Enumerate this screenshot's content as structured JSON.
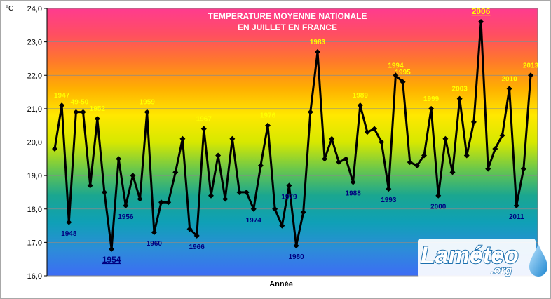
{
  "chart_data": {
    "type": "line",
    "title_lines": [
      "TEMPERATURE MOYENNE NATIONALE",
      "EN JUILLET EN FRANCE"
    ],
    "xlabel": "Année",
    "ylabel": "°C",
    "ylim": [
      16,
      24
    ],
    "yticks": [
      "16,0",
      "17,0",
      "18,0",
      "19,0",
      "20,0",
      "21,0",
      "22,0",
      "23,0",
      "24,0"
    ],
    "grid": "horizontal",
    "background_gradient": [
      "#ff3b8f",
      "#ff4f60",
      "#ff7a2a",
      "#ffb000",
      "#ffe800",
      "#d7e800",
      "#6cc84a",
      "#1aa690",
      "#0fa0b6",
      "#2c8dd8",
      "#3d6cf5"
    ],
    "x": [
      1946,
      1947,
      1948,
      1949,
      1950,
      1951,
      1952,
      1953,
      1954,
      1955,
      1956,
      1957,
      1958,
      1959,
      1960,
      1961,
      1962,
      1963,
      1964,
      1965,
      1966,
      1967,
      1968,
      1969,
      1970,
      1971,
      1972,
      1973,
      1974,
      1975,
      1976,
      1977,
      1978,
      1979,
      1980,
      1981,
      1982,
      1983,
      1984,
      1985,
      1986,
      1987,
      1988,
      1989,
      1990,
      1991,
      1992,
      1993,
      1994,
      1995,
      1996,
      1997,
      1998,
      1999,
      2000,
      2001,
      2002,
      2003,
      2004,
      2005,
      2006,
      2007,
      2008,
      2009,
      2010,
      2011,
      2012,
      2013
    ],
    "values": [
      19.8,
      21.1,
      17.6,
      20.9,
      20.9,
      18.7,
      20.7,
      18.5,
      16.8,
      19.5,
      18.1,
      19.0,
      18.3,
      20.9,
      17.3,
      18.2,
      18.2,
      19.1,
      20.1,
      17.4,
      17.2,
      20.4,
      18.4,
      19.6,
      18.3,
      20.1,
      18.5,
      18.5,
      18.0,
      19.3,
      20.5,
      18.0,
      17.5,
      18.7,
      16.9,
      17.9,
      20.9,
      22.7,
      19.5,
      20.1,
      19.4,
      19.5,
      18.8,
      21.1,
      20.3,
      20.4,
      20.0,
      18.6,
      22.0,
      21.8,
      19.4,
      19.3,
      19.6,
      21.0,
      18.4,
      20.1,
      19.1,
      21.3,
      19.6,
      20.6,
      23.6,
      19.2,
      19.8,
      20.2,
      21.6,
      18.1,
      19.2,
      22.0
    ],
    "annotations_hot": [
      {
        "text": "1947",
        "year": 1947
      },
      {
        "text": "49-50",
        "year": 1949.5
      },
      {
        "text": "1952",
        "year": 1952
      },
      {
        "text": "1959",
        "year": 1959
      },
      {
        "text": "1967",
        "year": 1967
      },
      {
        "text": "1976",
        "year": 1976
      },
      {
        "text": "1983",
        "year": 1983
      },
      {
        "text": "1989",
        "year": 1989
      },
      {
        "text": "1994",
        "year": 1994
      },
      {
        "text": "1995",
        "year": 1995
      },
      {
        "text": "1999",
        "year": 1999
      },
      {
        "text": "2003",
        "year": 2003
      },
      {
        "text": "2010",
        "year": 2010
      },
      {
        "text": "2013",
        "year": 2013
      }
    ],
    "annotations_cold": [
      {
        "text": "1948",
        "year": 1948
      },
      {
        "text": "1956",
        "year": 1956
      },
      {
        "text": "1960",
        "year": 1960
      },
      {
        "text": "1966",
        "year": 1966
      },
      {
        "text": "1974",
        "year": 1974
      },
      {
        "text": "1979",
        "year": 1979
      },
      {
        "text": "1980",
        "year": 1980
      },
      {
        "text": "1988",
        "year": 1988
      },
      {
        "text": "1993",
        "year": 1993
      },
      {
        "text": "2000",
        "year": 2000
      },
      {
        "text": "2011",
        "year": 2011
      }
    ],
    "record_hot": {
      "text": "2006",
      "year": 2006
    },
    "record_cold": {
      "text": "1954",
      "year": 1954
    },
    "line_color": "#000000",
    "marker": "diamond"
  },
  "logo": {
    "main_text": "Laméteo",
    "sub_text": ".org",
    "drop_color": "#3aa0e0"
  }
}
